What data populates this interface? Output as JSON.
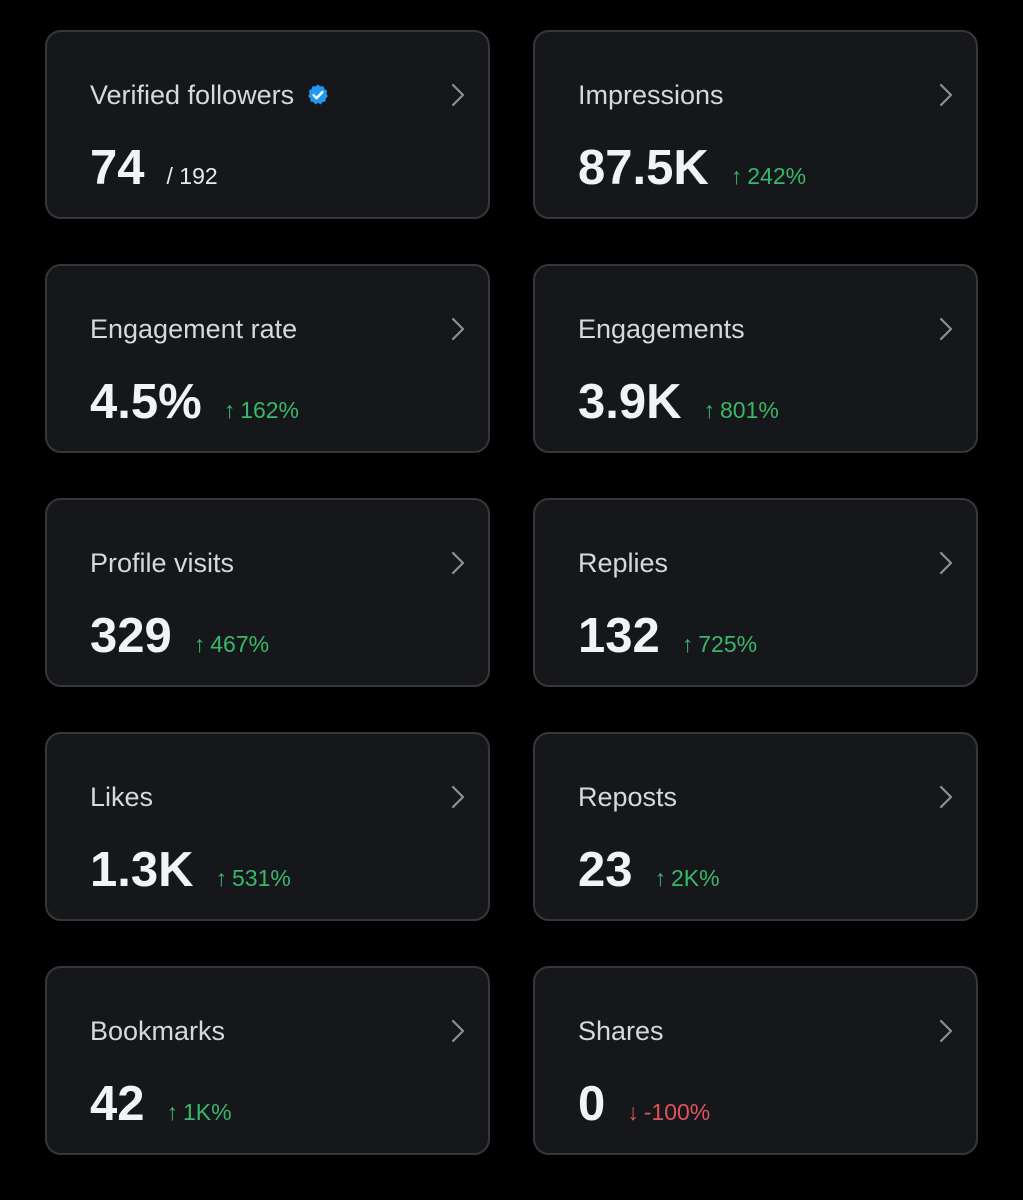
{
  "colors": {
    "background": "#000000",
    "card_background": "#16171b",
    "card_border": "#36373b",
    "positive": "#36b86a",
    "negative": "#e0525a",
    "verified_badge": "#1d9bf0"
  },
  "cards": [
    {
      "title": "Verified followers",
      "value": "74",
      "total": "/ 192",
      "verified_icon": "verified-badge-icon",
      "chevron_icon": "chevron-right-icon"
    },
    {
      "title": "Impressions",
      "value": "87.5K",
      "arrow": "↑",
      "change": "242%",
      "direction": "up",
      "chevron_icon": "chevron-right-icon"
    },
    {
      "title": "Engagement rate",
      "value": "4.5%",
      "arrow": "↑",
      "change": "162%",
      "direction": "up",
      "chevron_icon": "chevron-right-icon"
    },
    {
      "title": "Engagements",
      "value": "3.9K",
      "arrow": "↑",
      "change": "801%",
      "direction": "up",
      "chevron_icon": "chevron-right-icon"
    },
    {
      "title": "Profile visits",
      "value": "329",
      "arrow": "↑",
      "change": "467%",
      "direction": "up",
      "chevron_icon": "chevron-right-icon"
    },
    {
      "title": "Replies",
      "value": "132",
      "arrow": "↑",
      "change": "725%",
      "direction": "up",
      "chevron_icon": "chevron-right-icon"
    },
    {
      "title": "Likes",
      "value": "1.3K",
      "arrow": "↑",
      "change": "531%",
      "direction": "up",
      "chevron_icon": "chevron-right-icon"
    },
    {
      "title": "Reposts",
      "value": "23",
      "arrow": "↑",
      "change": "2K%",
      "direction": "up",
      "chevron_icon": "chevron-right-icon"
    },
    {
      "title": "Bookmarks",
      "value": "42",
      "arrow": "↑",
      "change": "1K%",
      "direction": "up",
      "chevron_icon": "chevron-right-icon"
    },
    {
      "title": "Shares",
      "value": "0",
      "arrow": "↓",
      "change": "-100%",
      "direction": "down",
      "chevron_icon": "chevron-right-icon"
    }
  ]
}
